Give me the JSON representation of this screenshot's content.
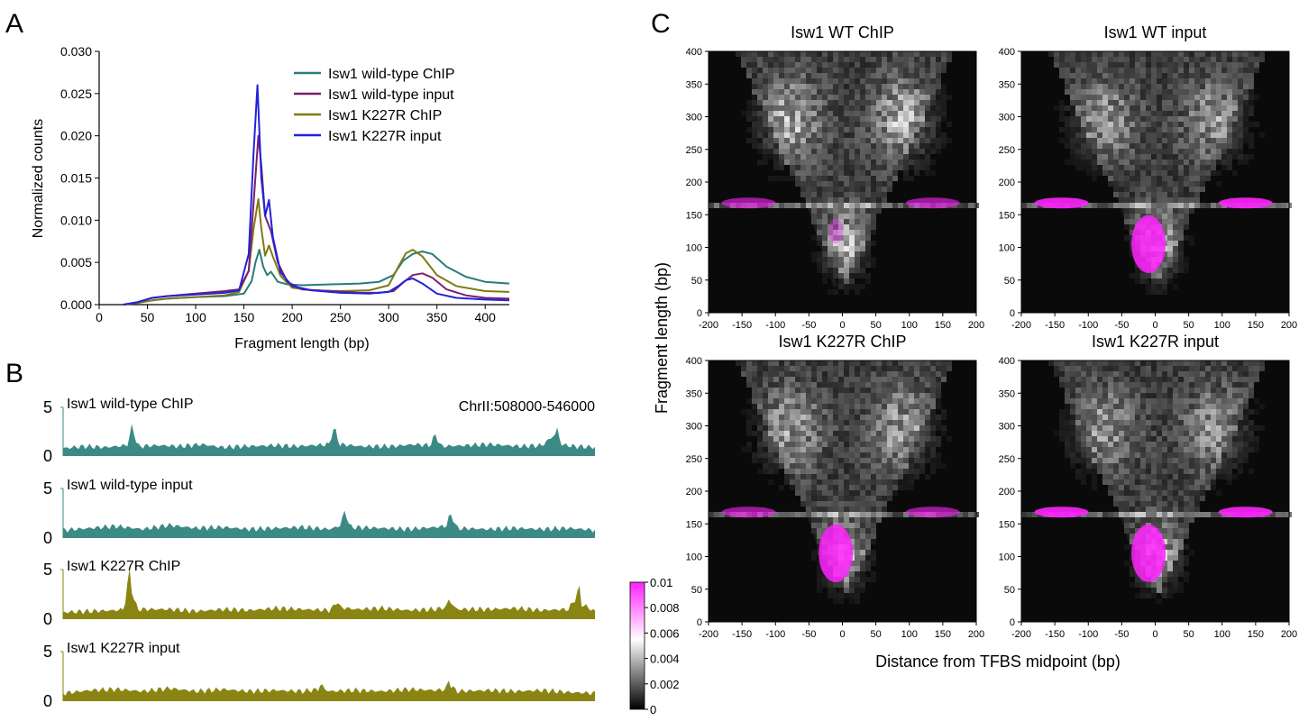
{
  "panel_letters": [
    "A",
    "B",
    "C"
  ],
  "colors": {
    "wt_chip": "#2a7b7b",
    "wt_input": "#7d1e6e",
    "k227r_chip": "#807a13",
    "k227r_input": "#2222dd",
    "track_wt": "#3b8a86",
    "track_k227r": "#8a8413",
    "magenta": "#ff22ff"
  },
  "chart_data": [
    {
      "panel": "A",
      "type": "line",
      "title": "",
      "xlabel": "Fragment length (bp)",
      "ylabel": "Normalized counts",
      "xlim": [
        0,
        425
      ],
      "ylim": [
        0,
        0.03
      ],
      "xticks": [
        "0",
        "50",
        "100",
        "150",
        "200",
        "250",
        "300",
        "350",
        "400"
      ],
      "yticks": [
        "0.000",
        "0.005",
        "0.010",
        "0.015",
        "0.020",
        "0.025",
        "0.030"
      ],
      "legend_position": "top-right",
      "series": [
        {
          "name": "Isw1 wild-type ChIP",
          "color": "#2a7b7b",
          "x": [
            25,
            40,
            55,
            70,
            100,
            130,
            150,
            158,
            162,
            166,
            170,
            174,
            178,
            185,
            195,
            210,
            240,
            270,
            290,
            305,
            315,
            325,
            335,
            345,
            360,
            380,
            400,
            425
          ],
          "y": [
            0,
            0.0002,
            0.0005,
            0.0007,
            0.0009,
            0.001,
            0.0013,
            0.0028,
            0.005,
            0.0065,
            0.0045,
            0.0035,
            0.0039,
            0.0027,
            0.0024,
            0.0023,
            0.0024,
            0.0025,
            0.0027,
            0.0035,
            0.0052,
            0.006,
            0.0063,
            0.006,
            0.0045,
            0.0033,
            0.0027,
            0.0025
          ]
        },
        {
          "name": "Isw1 wild-type input",
          "color": "#7d1e6e",
          "x": [
            25,
            40,
            55,
            70,
            100,
            130,
            145,
            155,
            160,
            165,
            168,
            172,
            178,
            185,
            195,
            210,
            240,
            270,
            290,
            305,
            315,
            325,
            335,
            345,
            360,
            380,
            400,
            425
          ],
          "y": [
            0,
            0.0003,
            0.0008,
            0.001,
            0.0013,
            0.0016,
            0.0018,
            0.004,
            0.012,
            0.02,
            0.0165,
            0.0105,
            0.0087,
            0.005,
            0.0027,
            0.0018,
            0.0016,
            0.0014,
            0.0014,
            0.0016,
            0.0026,
            0.0035,
            0.0037,
            0.0032,
            0.0018,
            0.0011,
            0.0008,
            0.0007
          ]
        },
        {
          "name": "Isw1 K227R ChIP",
          "color": "#807a13",
          "x": [
            25,
            40,
            55,
            70,
            100,
            130,
            145,
            155,
            160,
            165,
            168,
            172,
            176,
            180,
            188,
            200,
            220,
            250,
            280,
            300,
            310,
            318,
            325,
            335,
            350,
            370,
            400,
            425
          ],
          "y": [
            0,
            0.0002,
            0.0005,
            0.0007,
            0.0009,
            0.0011,
            0.0015,
            0.004,
            0.009,
            0.0125,
            0.009,
            0.0058,
            0.007,
            0.0057,
            0.0034,
            0.002,
            0.0017,
            0.0016,
            0.0017,
            0.0023,
            0.0045,
            0.0061,
            0.0065,
            0.0057,
            0.0035,
            0.0022,
            0.0016,
            0.0015
          ]
        },
        {
          "name": "Isw1 K227R input",
          "color": "#2222dd",
          "x": [
            25,
            40,
            55,
            70,
            100,
            130,
            145,
            155,
            160,
            164,
            168,
            172,
            176,
            180,
            188,
            200,
            220,
            250,
            280,
            300,
            310,
            318,
            325,
            335,
            350,
            370,
            400,
            425
          ],
          "y": [
            0,
            0.0003,
            0.0008,
            0.001,
            0.0012,
            0.0014,
            0.0017,
            0.006,
            0.018,
            0.026,
            0.015,
            0.0105,
            0.0124,
            0.008,
            0.0038,
            0.0022,
            0.0017,
            0.0014,
            0.0013,
            0.0015,
            0.0022,
            0.0029,
            0.0031,
            0.0025,
            0.0013,
            0.0008,
            0.0006,
            0.0005
          ]
        }
      ]
    },
    {
      "panel": "B",
      "type": "area",
      "region_label": "ChrII:508000-546000",
      "yticks": [
        "0",
        "5"
      ],
      "ylim": [
        0,
        5
      ],
      "tracks": [
        {
          "name": "Isw1 wild-type ChIP",
          "color": "#3b8a86",
          "x": [
            0,
            0.04,
            0.08,
            0.12,
            0.125,
            0.13,
            0.135,
            0.14,
            0.18,
            0.22,
            0.26,
            0.3,
            0.34,
            0.4,
            0.44,
            0.5,
            0.505,
            0.51,
            0.515,
            0.52,
            0.56,
            0.62,
            0.66,
            0.69,
            0.7,
            0.71,
            0.76,
            0.8,
            0.86,
            0.9,
            0.925,
            0.93,
            0.935,
            0.96,
            1.0
          ],
          "y": [
            0.8,
            1.0,
            0.9,
            1.1,
            2.0,
            3.3,
            2.0,
            1.0,
            1.1,
            1.0,
            1.2,
            0.9,
            1.0,
            1.1,
            1.0,
            1.2,
            2.2,
            3.0,
            2.0,
            1.2,
            1.0,
            1.0,
            1.2,
            1.1,
            2.2,
            1.0,
            1.1,
            1.2,
            1.0,
            1.1,
            2.2,
            3.0,
            1.2,
            1.0,
            0.9
          ]
        },
        {
          "name": "Isw1 wild-type input",
          "color": "#3b8a86",
          "x": [
            0,
            0.05,
            0.1,
            0.15,
            0.2,
            0.25,
            0.3,
            0.35,
            0.4,
            0.45,
            0.5,
            0.52,
            0.525,
            0.53,
            0.535,
            0.54,
            0.6,
            0.65,
            0.7,
            0.72,
            0.725,
            0.73,
            0.74,
            0.8,
            0.85,
            0.9,
            0.95,
            1.0
          ],
          "y": [
            0.8,
            1.0,
            1.2,
            0.9,
            1.3,
            1.0,
            1.1,
            0.9,
            1.0,
            1.1,
            0.9,
            1.2,
            2.0,
            2.8,
            1.8,
            1.1,
            1.0,
            0.9,
            1.1,
            1.2,
            2.0,
            2.4,
            1.0,
            0.9,
            1.0,
            0.9,
            1.0,
            0.8
          ]
        },
        {
          "name": "Isw1 K227R ChIP",
          "color": "#8a8413",
          "x": [
            0,
            0.05,
            0.1,
            0.115,
            0.12,
            0.125,
            0.13,
            0.14,
            0.2,
            0.25,
            0.3,
            0.35,
            0.4,
            0.45,
            0.5,
            0.51,
            0.515,
            0.52,
            0.55,
            0.6,
            0.65,
            0.7,
            0.72,
            0.725,
            0.73,
            0.74,
            0.8,
            0.85,
            0.9,
            0.95,
            0.965,
            0.97,
            0.975,
            1.0
          ],
          "y": [
            0.7,
            0.8,
            0.9,
            1.0,
            3.2,
            5.0,
            2.5,
            1.0,
            1.0,
            0.8,
            1.0,
            0.9,
            1.1,
            1.0,
            0.9,
            1.3,
            2.0,
            1.2,
            1.0,
            1.1,
            0.9,
            1.0,
            1.2,
            2.0,
            1.6,
            1.0,
            1.0,
            1.1,
            0.9,
            1.0,
            2.2,
            3.5,
            1.5,
            0.8
          ]
        },
        {
          "name": "Isw1 K227R input",
          "color": "#8a8413",
          "x": [
            0,
            0.05,
            0.1,
            0.15,
            0.2,
            0.25,
            0.3,
            0.35,
            0.4,
            0.45,
            0.48,
            0.485,
            0.49,
            0.5,
            0.55,
            0.6,
            0.65,
            0.7,
            0.72,
            0.725,
            0.73,
            0.74,
            0.8,
            0.85,
            0.9,
            0.95,
            1.0
          ],
          "y": [
            0.8,
            1.1,
            1.2,
            1.0,
            1.3,
            1.0,
            1.2,
            1.0,
            1.1,
            1.0,
            1.2,
            1.8,
            1.3,
            1.0,
            1.1,
            1.0,
            1.2,
            1.1,
            1.2,
            2.1,
            1.5,
            1.0,
            1.1,
            1.0,
            1.1,
            0.9,
            0.8
          ]
        }
      ]
    },
    {
      "panel": "C",
      "type": "heatmap",
      "xlabel": "Distance from TFBS midpoint (bp)",
      "ylabel": "Fragment length (bp)",
      "xlim": [
        -200,
        200
      ],
      "ylim": [
        0,
        400
      ],
      "xticks": [
        "-200",
        "-150",
        "-100",
        "-50",
        "0",
        "50",
        "100",
        "150",
        "200"
      ],
      "yticks": [
        "0",
        "50",
        "100",
        "150",
        "200",
        "250",
        "300",
        "350",
        "400"
      ],
      "colorbar": {
        "range": [
          0,
          0.01
        ],
        "ticks": [
          "0",
          "0.002",
          "0.004",
          "0.006",
          "0.008",
          "0.01"
        ]
      },
      "maps": [
        {
          "title": "Isw1 WT ChIP",
          "center_intensity": 0.45,
          "band_intensity": 0.45,
          "lobe_intensity": 0.7
        },
        {
          "title": "Isw1 WT input",
          "center_intensity": 1.0,
          "band_intensity": 1.0,
          "lobe_intensity": 0.55
        },
        {
          "title": "Isw1 K227R ChIP",
          "center_intensity": 1.0,
          "band_intensity": 0.75,
          "lobe_intensity": 0.6
        },
        {
          "title": "Isw1 K227R input",
          "center_intensity": 1.0,
          "band_intensity": 1.0,
          "lobe_intensity": 0.55
        }
      ]
    }
  ]
}
